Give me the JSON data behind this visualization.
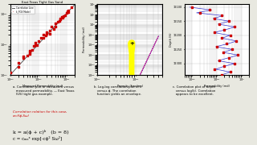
{
  "bg_color": "#e8e8e0",
  "title_text": "East Texas Tight Gas Sand",
  "panel_a_title": "a. Correlation plot of calculated versus\n   measured permeability. — East Texas\n   (US) tight gas example.",
  "panel_b_title": "b. Log-log correlation plot of k\n   versus ϕ. The correlation\n   function yields an envelope.",
  "panel_c_title": "c. Correlation plot of depth\n   versus log(k). Correlation\n   appears to be excellent.",
  "corr_relation_text": "Correlation relation for this case,\nα=f(ϕ,Sω)",
  "eq1": "k = a(ϕ + c)ᵇ   (b = 8)",
  "eq2": "c = cₘₐˣ exp[-cϕ² Sω²]",
  "scatter_x": [
    0.001,
    0.002,
    0.003,
    0.005,
    0.007,
    0.008,
    0.01,
    0.012,
    0.015,
    0.02,
    0.025,
    0.03,
    0.04,
    0.05,
    0.06,
    0.07,
    0.08,
    0.1,
    0.12,
    0.15,
    0.003,
    0.004,
    0.006,
    0.008,
    0.015,
    0.025,
    0.04,
    0.06,
    0.09,
    0.12,
    0.002,
    0.005,
    0.009,
    0.018,
    0.035,
    0.055,
    0.075,
    0.11,
    0.005,
    0.02
  ],
  "scatter_y": [
    0.0012,
    0.0025,
    0.004,
    0.006,
    0.009,
    0.011,
    0.013,
    0.016,
    0.02,
    0.025,
    0.028,
    0.038,
    0.048,
    0.055,
    0.068,
    0.078,
    0.085,
    0.105,
    0.125,
    0.16,
    0.0035,
    0.0042,
    0.0065,
    0.0095,
    0.016,
    0.022,
    0.038,
    0.065,
    0.088,
    0.115,
    0.0018,
    0.0055,
    0.0092,
    0.019,
    0.032,
    0.058,
    0.072,
    0.118,
    0.0048,
    0.022
  ],
  "depth_vals": [
    12100,
    12110,
    12120,
    12130,
    12140,
    12150,
    12160,
    12170,
    12180,
    12190,
    12200,
    12210,
    12220,
    12230,
    12240,
    12250,
    12260,
    12270,
    12280,
    12290,
    12300,
    12310,
    12320,
    12330,
    12340
  ],
  "perm_log_vals": [
    0.01,
    0.05,
    0.02,
    0.15,
    0.08,
    0.3,
    0.12,
    0.5,
    0.2,
    0.08,
    0.35,
    0.15,
    0.6,
    0.25,
    0.1,
    0.4,
    0.18,
    0.7,
    0.3,
    0.12,
    0.5,
    0.2,
    0.08,
    0.35,
    0.15
  ],
  "perm_log_line": [
    0.008,
    0.06,
    0.015,
    0.18,
    0.07,
    0.32,
    0.11,
    0.52,
    0.22,
    0.075,
    0.33,
    0.16,
    0.62,
    0.27,
    0.09,
    0.42,
    0.17,
    0.72,
    0.28,
    0.11,
    0.52,
    0.19,
    0.09,
    0.33,
    0.16
  ],
  "panel_bg": "#ffffff",
  "dot_color": "#cc0000",
  "line_color": "#000000",
  "blue_line_color": "#3333cc",
  "red_text_color": "#cc0000"
}
